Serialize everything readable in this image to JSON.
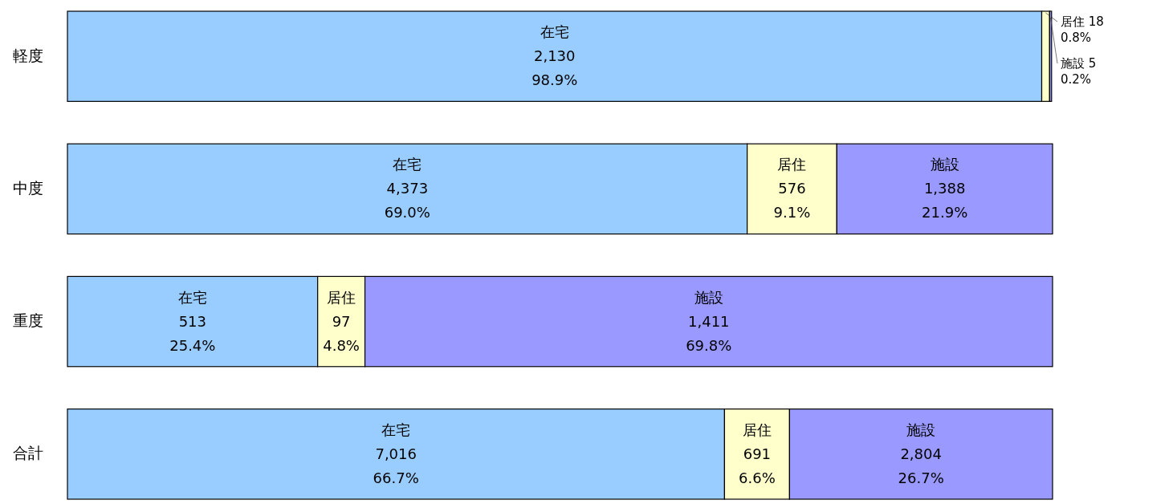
{
  "chart_data": {
    "type": "bar",
    "orientation": "horizontal",
    "stacked": true,
    "categories": [
      "軽度",
      "中度",
      "重度",
      "合計"
    ],
    "xlim": [
      0,
      100
    ],
    "tick_labels": "y",
    "legend": false,
    "series": [
      {
        "name": "在宅",
        "color": "#99ccff",
        "values": [
          98.9,
          69.0,
          25.4,
          66.7
        ],
        "value_labels": [
          "2,130\n98.9%",
          "4,373\n69.0%",
          "513\n25.4%",
          "7,016\n66.7%"
        ]
      },
      {
        "name": "居住",
        "color": "#ffffcc",
        "values": [
          0.8,
          9.1,
          4.8,
          6.6
        ],
        "value_labels": [
          "18\n0.8%",
          "576\n9.1%",
          "97\n4.8%",
          "691\n6.6%"
        ]
      },
      {
        "name": "施設",
        "color": "#9999ff",
        "values": [
          0.2,
          21.9,
          69.8,
          26.7
        ],
        "value_labels": [
          "5\n0.2%",
          "1,388\n21.9%",
          "1,411\n69.8%",
          "2,804\n26.7%"
        ]
      }
    ]
  }
}
